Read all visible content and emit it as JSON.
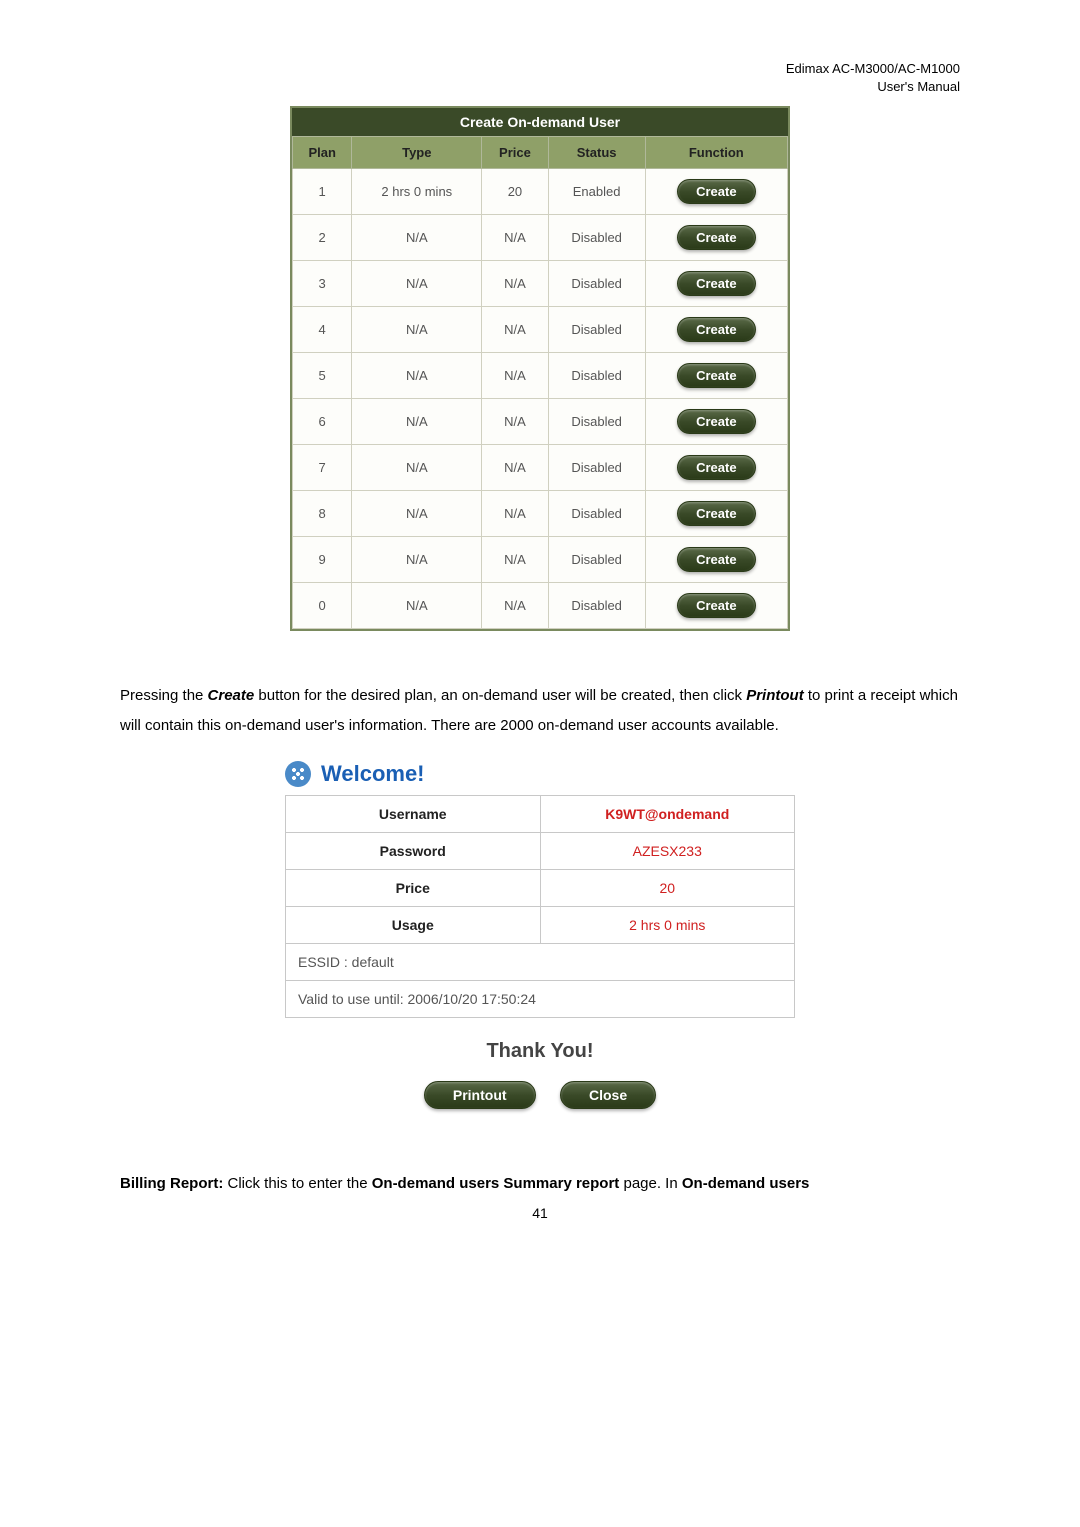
{
  "header": {
    "line1": "Edimax AC-M3000/AC-M1000",
    "line2": "User's Manual"
  },
  "ondemand": {
    "title": "Create On-demand User",
    "columns": [
      "Plan",
      "Type",
      "Price",
      "Status",
      "Function"
    ],
    "button_label": "Create",
    "rows": [
      {
        "plan": "1",
        "type": "2 hrs 0 mins",
        "price": "20",
        "status": "Enabled"
      },
      {
        "plan": "2",
        "type": "N/A",
        "price": "N/A",
        "status": "Disabled"
      },
      {
        "plan": "3",
        "type": "N/A",
        "price": "N/A",
        "status": "Disabled"
      },
      {
        "plan": "4",
        "type": "N/A",
        "price": "N/A",
        "status": "Disabled"
      },
      {
        "plan": "5",
        "type": "N/A",
        "price": "N/A",
        "status": "Disabled"
      },
      {
        "plan": "6",
        "type": "N/A",
        "price": "N/A",
        "status": "Disabled"
      },
      {
        "plan": "7",
        "type": "N/A",
        "price": "N/A",
        "status": "Disabled"
      },
      {
        "plan": "8",
        "type": "N/A",
        "price": "N/A",
        "status": "Disabled"
      },
      {
        "plan": "9",
        "type": "N/A",
        "price": "N/A",
        "status": "Disabled"
      },
      {
        "plan": "0",
        "type": "N/A",
        "price": "N/A",
        "status": "Disabled"
      }
    ]
  },
  "paragraph1": {
    "p1a": "Pressing the ",
    "p1b": "Create",
    "p1c": " button for the desired plan, an on-demand user will be created, then click ",
    "p1d": "Printout",
    "p1e": " to print a receipt which will contain this on-demand user's information. There are 2000 on-demand user accounts available."
  },
  "welcome": {
    "title": "Welcome!",
    "rows": [
      {
        "label": "Username",
        "value": "K9WT@ondemand",
        "bold_value": true
      },
      {
        "label": "Password",
        "value": "AZESX233",
        "bold_value": false
      },
      {
        "label": "Price",
        "value": "20",
        "bold_value": false
      },
      {
        "label": "Usage",
        "value": "2 hrs 0 mins",
        "bold_value": false
      }
    ],
    "essid": "ESSID : default",
    "valid": "Valid to use until: 2006/10/20 17:50:24",
    "thankyou": "Thank You!",
    "printout_label": "Printout",
    "close_label": "Close"
  },
  "footer": {
    "f1": "Billing Report:",
    "f2": " Click this to enter the ",
    "f3": "On-demand users Summary report",
    "f4": " page. In ",
    "f5": "On-demand users"
  },
  "page_number": "41",
  "colors": {
    "header_bg": "#3a4a28",
    "th_bg": "#8fa068",
    "btn_grad_top": "#5a6a48",
    "value_red": "#d02020",
    "welcome_blue": "#1a5fb4"
  }
}
